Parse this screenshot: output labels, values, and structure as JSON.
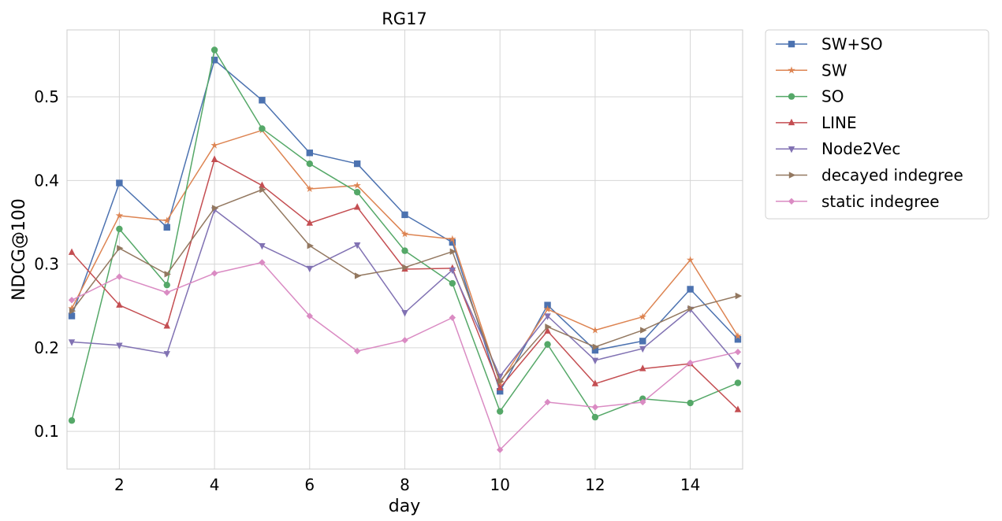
{
  "chart_data": {
    "type": "line",
    "title": "RG17",
    "xlabel": "day",
    "ylabel": "NDCG@100",
    "xlim": [
      0.9,
      15.1
    ],
    "ylim": [
      0.055,
      0.58
    ],
    "x_ticks": [
      2,
      4,
      6,
      8,
      10,
      12,
      14
    ],
    "y_ticks": [
      0.1,
      0.2,
      0.3,
      0.4,
      0.5
    ],
    "x_tick_labels": [
      "2",
      "4",
      "6",
      "8",
      "10",
      "12",
      "14"
    ],
    "y_tick_labels": [
      "0.1",
      "0.2",
      "0.3",
      "0.4",
      "0.5"
    ],
    "grid": true,
    "legend_position": "outside-right",
    "x": [
      1,
      2,
      3,
      4,
      5,
      6,
      7,
      8,
      9,
      10,
      11,
      12,
      13,
      14,
      15
    ],
    "series": [
      {
        "name": "SW+SO",
        "color": "#4c72b0",
        "marker": "square",
        "values": [
          0.238,
          0.397,
          0.344,
          0.544,
          0.496,
          0.433,
          0.42,
          0.359,
          0.326,
          0.148,
          0.251,
          0.197,
          0.208,
          0.27,
          0.21
        ]
      },
      {
        "name": "SW",
        "color": "#dd8452",
        "marker": "star",
        "values": [
          0.247,
          0.358,
          0.352,
          0.442,
          0.46,
          0.39,
          0.394,
          0.336,
          0.33,
          0.158,
          0.246,
          0.221,
          0.237,
          0.305,
          0.214
        ]
      },
      {
        "name": "SO",
        "color": "#55a868",
        "marker": "circle",
        "values": [
          0.113,
          0.342,
          0.275,
          0.556,
          0.462,
          0.42,
          0.386,
          0.316,
          0.277,
          0.124,
          0.204,
          0.117,
          0.139,
          0.134,
          0.158
        ]
      },
      {
        "name": "LINE",
        "color": "#c44e52",
        "marker": "triangle-up",
        "values": [
          0.314,
          0.251,
          0.226,
          0.425,
          0.394,
          0.349,
          0.368,
          0.294,
          0.295,
          0.152,
          0.22,
          0.157,
          0.175,
          0.181,
          0.126
        ]
      },
      {
        "name": "Node2Vec",
        "color": "#8172b3",
        "marker": "triangle-down",
        "values": [
          0.207,
          0.203,
          0.193,
          0.365,
          0.322,
          0.295,
          0.323,
          0.242,
          0.293,
          0.166,
          0.238,
          0.185,
          0.199,
          0.246,
          0.179
        ]
      },
      {
        "name": "decayed indegree",
        "color": "#937860",
        "marker": "triangle-right",
        "values": [
          0.244,
          0.319,
          0.288,
          0.367,
          0.389,
          0.322,
          0.286,
          0.296,
          0.315,
          0.16,
          0.225,
          0.201,
          0.221,
          0.247,
          0.262
        ]
      },
      {
        "name": "static indegree",
        "color": "#da8bc3",
        "marker": "diamond",
        "values": [
          0.257,
          0.285,
          0.266,
          0.289,
          0.302,
          0.238,
          0.196,
          0.209,
          0.236,
          0.078,
          0.135,
          0.129,
          0.135,
          0.182,
          0.195
        ]
      }
    ]
  }
}
